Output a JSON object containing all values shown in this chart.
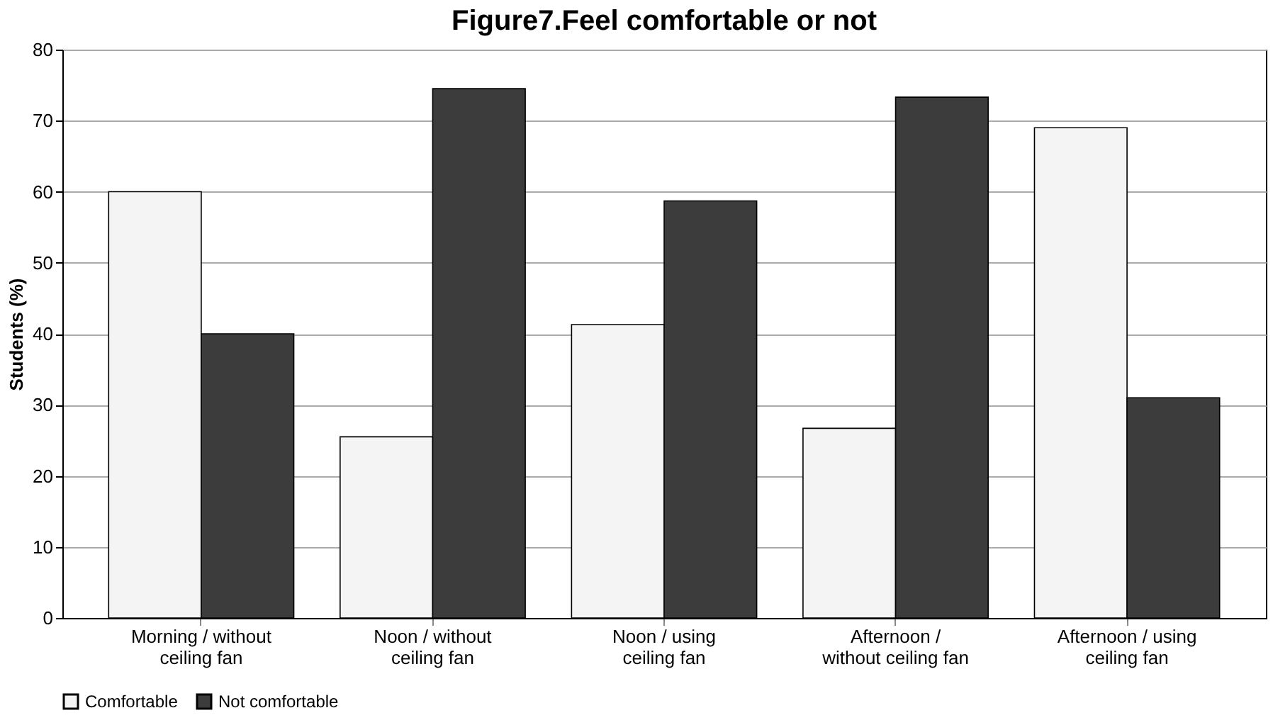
{
  "chart_data": {
    "type": "bar",
    "title": "Figure7.Feel comfortable or not",
    "ylabel": "Students (%)",
    "categories": [
      "Morning / without\nceiling fan",
      "Noon / without\nceiling fan",
      "Noon / using\nceiling fan",
      "Afternoon /\nwithout ceiling fan",
      "Afternoon / using\nceiling fan"
    ],
    "series": [
      {
        "name": "Comfortable",
        "color": "#f4f4f4",
        "values": [
          60,
          25.5,
          41.3,
          26.7,
          69
        ]
      },
      {
        "name": "Not comfortable",
        "color": "#3c3c3c",
        "values": [
          40,
          74.5,
          58.7,
          73.3,
          31
        ]
      }
    ],
    "ylim": [
      0,
      80
    ],
    "yticks": [
      0,
      10,
      20,
      30,
      40,
      50,
      60,
      70,
      80
    ],
    "grid": "y",
    "legend": "bottom"
  }
}
